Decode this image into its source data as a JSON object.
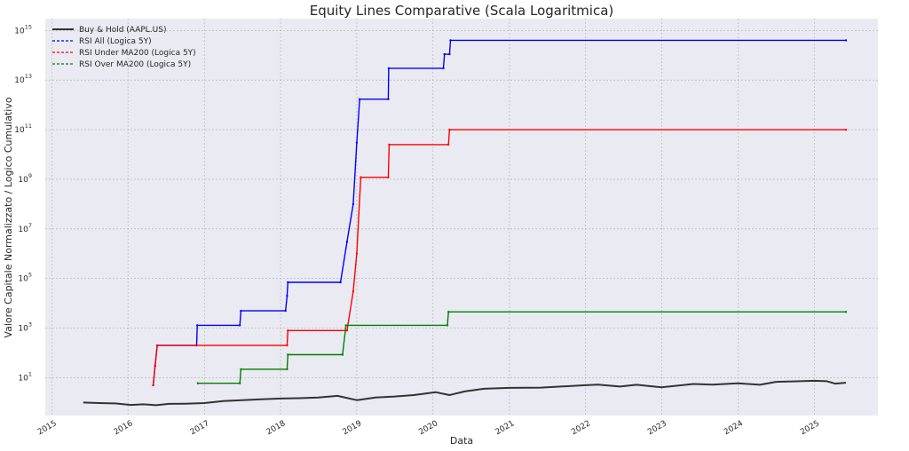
{
  "chart_data": {
    "type": "line",
    "title": "Equity Lines Comparative (Scala Logaritmica)",
    "xlabel": "Data",
    "ylabel": "Valore Capitale Normalizzato / Logico Cumulativo",
    "x_range": [
      "2014-12-01",
      "2025-11-01"
    ],
    "yscale": "log",
    "ylim": [
      0.3,
      3000000000000000.0
    ],
    "grid": true,
    "legend_position": "top-left",
    "x_ticks": [
      "2015",
      "2016",
      "2017",
      "2018",
      "2019",
      "2020",
      "2021",
      "2022",
      "2023",
      "2024",
      "2025"
    ],
    "y_ticks": [
      {
        "mantissa": "10",
        "exponent": "1",
        "value": 10
      },
      {
        "mantissa": "10",
        "exponent": "3",
        "value": 1000
      },
      {
        "mantissa": "10",
        "exponent": "5",
        "value": 100000
      },
      {
        "mantissa": "10",
        "exponent": "7",
        "value": 10000000
      },
      {
        "mantissa": "10",
        "exponent": "9",
        "value": 1000000000
      },
      {
        "mantissa": "10",
        "exponent": "11",
        "value": 100000000000
      },
      {
        "mantissa": "10",
        "exponent": "13",
        "value": 10000000000000
      },
      {
        "mantissa": "10",
        "exponent": "15",
        "value": 1000000000000000
      }
    ],
    "series": [
      {
        "name": "Buy & Hold (AAPL.US)",
        "color": "#333333",
        "style": "solid",
        "points": [
          [
            "2015-06-01",
            1.0
          ],
          [
            "2015-08-15",
            0.95
          ],
          [
            "2015-11-01",
            0.92
          ],
          [
            "2016-01-15",
            0.8
          ],
          [
            "2016-03-15",
            0.85
          ],
          [
            "2016-05-15",
            0.78
          ],
          [
            "2016-07-15",
            0.88
          ],
          [
            "2016-10-01",
            0.9
          ],
          [
            "2017-01-01",
            0.95
          ],
          [
            "2017-04-01",
            1.15
          ],
          [
            "2017-07-01",
            1.25
          ],
          [
            "2017-10-01",
            1.35
          ],
          [
            "2018-01-01",
            1.45
          ],
          [
            "2018-04-01",
            1.5
          ],
          [
            "2018-07-01",
            1.6
          ],
          [
            "2018-10-01",
            1.85
          ],
          [
            "2019-01-01",
            1.25
          ],
          [
            "2019-04-01",
            1.6
          ],
          [
            "2019-07-01",
            1.75
          ],
          [
            "2019-10-01",
            2.0
          ],
          [
            "2020-01-15",
            2.6
          ],
          [
            "2020-03-20",
            2.0
          ],
          [
            "2020-06-01",
            2.8
          ],
          [
            "2020-09-01",
            3.6
          ],
          [
            "2021-01-01",
            3.9
          ],
          [
            "2021-06-01",
            4.0
          ],
          [
            "2021-12-31",
            5.0
          ],
          [
            "2022-03-01",
            5.3
          ],
          [
            "2022-06-15",
            4.4
          ],
          [
            "2022-09-01",
            5.2
          ],
          [
            "2022-12-31",
            4.1
          ],
          [
            "2023-06-01",
            5.6
          ],
          [
            "2023-09-01",
            5.3
          ],
          [
            "2023-12-31",
            6.0
          ],
          [
            "2024-04-15",
            5.2
          ],
          [
            "2024-07-01",
            6.8
          ],
          [
            "2024-12-31",
            7.5
          ],
          [
            "2025-03-01",
            7.2
          ],
          [
            "2025-04-10",
            5.8
          ],
          [
            "2025-06-01",
            6.3
          ]
        ]
      },
      {
        "name": "RSI All (Logica 5Y)",
        "color": "#0000ff",
        "style": "dashed",
        "points": [
          [
            "2016-05-01",
            5
          ],
          [
            "2016-05-10",
            30
          ],
          [
            "2016-05-20",
            200
          ],
          [
            "2016-11-25",
            200
          ],
          [
            "2016-11-28",
            1300
          ],
          [
            "2017-06-20",
            1300
          ],
          [
            "2017-06-25",
            5000
          ],
          [
            "2018-01-25",
            5000
          ],
          [
            "2018-02-01",
            20000
          ],
          [
            "2018-02-05",
            70000
          ],
          [
            "2018-10-15",
            70000
          ],
          [
            "2018-11-15",
            3000000.0
          ],
          [
            "2018-12-15",
            100000000.0
          ],
          [
            "2019-01-01",
            30000000000.0
          ],
          [
            "2019-01-15",
            1700000000000.0
          ],
          [
            "2019-06-01",
            1700000000000.0
          ],
          [
            "2019-06-03",
            30000000000000.0
          ],
          [
            "2020-02-20",
            30000000000000.0
          ],
          [
            "2020-02-25",
            110000000000000.0
          ],
          [
            "2020-03-20",
            110000000000000.0
          ],
          [
            "2020-03-25",
            400000000000000.0
          ],
          [
            "2025-06-01",
            400000000000000.0
          ]
        ]
      },
      {
        "name": "RSI Under MA200 (Logica 5Y)",
        "color": "#ff0000",
        "style": "dashed",
        "points": [
          [
            "2016-05-01",
            5
          ],
          [
            "2016-05-10",
            30
          ],
          [
            "2016-05-20",
            200
          ],
          [
            "2018-02-01",
            200
          ],
          [
            "2018-02-05",
            800
          ],
          [
            "2018-11-15",
            800
          ],
          [
            "2018-12-15",
            30000
          ],
          [
            "2019-01-01",
            1000000.0
          ],
          [
            "2019-01-20",
            1200000000.0
          ],
          [
            "2019-06-01",
            1200000000.0
          ],
          [
            "2019-06-05",
            25000000000.0
          ],
          [
            "2020-03-15",
            25000000000.0
          ],
          [
            "2020-03-20",
            100000000000.0
          ],
          [
            "2025-06-01",
            100000000000.0
          ]
        ]
      },
      {
        "name": "RSI Over MA200 (Logica 5Y)",
        "color": "#008000",
        "style": "dashed",
        "points": [
          [
            "2016-12-01",
            6
          ],
          [
            "2017-06-20",
            6
          ],
          [
            "2017-06-25",
            22
          ],
          [
            "2018-02-01",
            22
          ],
          [
            "2018-02-05",
            85
          ],
          [
            "2018-10-25",
            85
          ],
          [
            "2018-11-10",
            1300
          ],
          [
            "2020-03-10",
            1300
          ],
          [
            "2020-03-15",
            4500
          ],
          [
            "2025-06-01",
            4500
          ]
        ]
      }
    ]
  }
}
